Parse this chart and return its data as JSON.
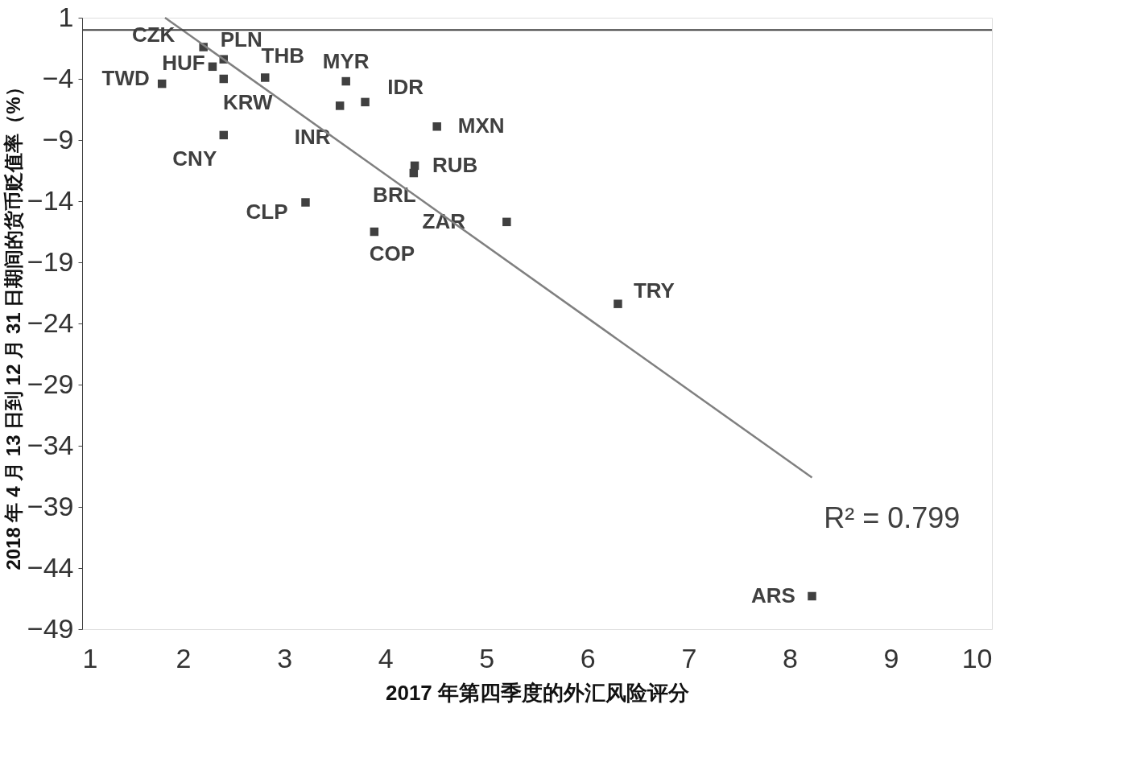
{
  "chart_data": {
    "type": "scatter",
    "xlabel": "2017 年第四季度的外汇风险评分",
    "ylabel": "2018 年 4 月 13 日到 12 月 31 日期间的货币贬值率（%）",
    "xlim": [
      1,
      10
    ],
    "xticks": [
      1,
      2,
      3,
      4,
      5,
      6,
      7,
      8,
      9,
      10
    ],
    "ylim": [
      -49,
      1
    ],
    "yticks": [
      1,
      -4,
      -9,
      -14,
      -19,
      -24,
      -29,
      -34,
      -39,
      -44,
      -49
    ],
    "grid": false,
    "marker": "square",
    "ref_lines": [
      {
        "axis": "y",
        "value": 0,
        "color": "#404040"
      }
    ],
    "annotations": [
      "R² = 0.799"
    ],
    "series": [
      {
        "name": "CZK",
        "color": "#404040",
        "x": [
          2.2
        ],
        "values": [
          -1.4
        ]
      },
      {
        "name": "PLN",
        "color": "#404040",
        "x": [
          2.4
        ],
        "values": [
          -2.4
        ]
      },
      {
        "name": "HUF",
        "color": "#404040",
        "x": [
          2.29
        ],
        "values": [
          -3.0
        ]
      },
      {
        "name": "KRW",
        "color": "#404040",
        "x": [
          2.4
        ],
        "values": [
          -4.0
        ]
      },
      {
        "name": "TWD",
        "color": "#404040",
        "x": [
          1.79
        ],
        "values": [
          -4.4
        ]
      },
      {
        "name": "THB",
        "color": "#404040",
        "x": [
          2.81
        ],
        "values": [
          -3.9
        ]
      },
      {
        "name": "MYR",
        "color": "#404040",
        "x": [
          3.61
        ],
        "values": [
          -4.2
        ]
      },
      {
        "name": "IDR",
        "color": "#404040",
        "x": [
          3.8
        ],
        "values": [
          -5.9
        ]
      },
      {
        "name": "INR",
        "color": "#404040",
        "x": [
          3.55
        ],
        "values": [
          -6.2
        ]
      },
      {
        "name": "CNY",
        "color": "#404040",
        "x": [
          2.4
        ],
        "values": [
          -8.6
        ]
      },
      {
        "name": "MXN",
        "color": "#404040",
        "x": [
          4.51
        ],
        "values": [
          -7.9
        ]
      },
      {
        "name": "RUB",
        "color": "#404040",
        "x": [
          4.29
        ],
        "values": [
          -11.1
        ]
      },
      {
        "name": "BRL",
        "color": "#404040",
        "x": [
          4.28
        ],
        "values": [
          -11.7
        ]
      },
      {
        "name": "CLP",
        "color": "#404040",
        "x": [
          3.21
        ],
        "values": [
          -14.1
        ]
      },
      {
        "name": "COP",
        "color": "#404040",
        "x": [
          3.89
        ],
        "values": [
          -16.5
        ]
      },
      {
        "name": "ZAR",
        "color": "#404040",
        "x": [
          5.2
        ],
        "values": [
          -15.7
        ]
      },
      {
        "name": "TRY",
        "color": "#404040",
        "x": [
          6.3
        ],
        "values": [
          -22.4
        ]
      },
      {
        "name": "ARS",
        "color": "#404040",
        "x": [
          8.22
        ],
        "values": [
          -46.3
        ]
      },
      {
        "type": "line",
        "marker": "none",
        "color": "#808080",
        "x": [
          1.82,
          8.22
        ],
        "values": [
          1,
          -36.6
        ]
      }
    ]
  }
}
